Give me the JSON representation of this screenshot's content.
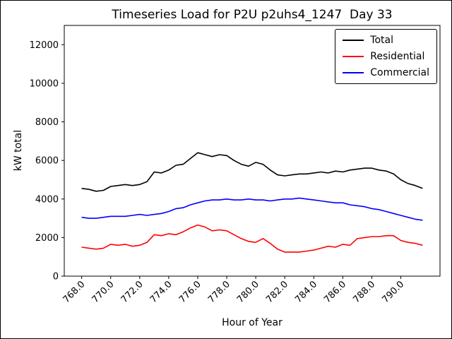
{
  "chart_data": {
    "type": "line",
    "title": "Timeseries Load for P2U p2uhs4_1247  Day 33",
    "xlabel": "Hour of Year",
    "ylabel": "kW total",
    "xlim": [
      766.8,
      792.7
    ],
    "ylim": [
      0,
      13000
    ],
    "grid": false,
    "legend_position": "upper right",
    "x_ticks": [
      768,
      770,
      772,
      774,
      776,
      778,
      780,
      782,
      784,
      786,
      788,
      790
    ],
    "x_tick_labels": [
      "768.0",
      "770.0",
      "772.0",
      "774.0",
      "776.0",
      "778.0",
      "780.0",
      "782.0",
      "784.0",
      "786.0",
      "788.0",
      "790.0"
    ],
    "y_ticks": [
      0,
      2000,
      4000,
      6000,
      8000,
      10000,
      12000
    ],
    "y_tick_labels": [
      "0",
      "2000",
      "4000",
      "6000",
      "8000",
      "10000",
      "12000"
    ],
    "x": [
      768.0,
      768.5,
      769.0,
      769.5,
      770.0,
      770.5,
      771.0,
      771.5,
      772.0,
      772.5,
      773.0,
      773.5,
      774.0,
      774.5,
      775.0,
      775.5,
      776.0,
      776.5,
      777.0,
      777.5,
      778.0,
      778.5,
      779.0,
      779.5,
      780.0,
      780.5,
      781.0,
      781.5,
      782.0,
      782.5,
      783.0,
      783.5,
      784.0,
      784.5,
      785.0,
      785.5,
      786.0,
      786.5,
      787.0,
      787.5,
      788.0,
      788.5,
      789.0,
      789.5,
      790.0,
      790.5,
      791.0,
      791.5
    ],
    "series": [
      {
        "name": "Total",
        "color": "#000000",
        "values": [
          4550,
          4500,
          4400,
          4450,
          4650,
          4700,
          4750,
          4700,
          4750,
          4900,
          5400,
          5350,
          5500,
          5750,
          5800,
          6100,
          6400,
          6300,
          6200,
          6300,
          6250,
          6000,
          5800,
          5700,
          5900,
          5800,
          5500,
          5250,
          5200,
          5250,
          5300,
          5300,
          5350,
          5400,
          5350,
          5450,
          5400,
          5500,
          5550,
          5600,
          5600,
          5500,
          5450,
          5300,
          5000,
          4800,
          4700,
          4550
        ]
      },
      {
        "name": "Residential",
        "color": "#ff0000",
        "values": [
          1500,
          1450,
          1400,
          1450,
          1650,
          1600,
          1650,
          1550,
          1600,
          1750,
          2150,
          2100,
          2200,
          2150,
          2300,
          2500,
          2650,
          2550,
          2350,
          2400,
          2350,
          2150,
          1950,
          1800,
          1750,
          1950,
          1700,
          1400,
          1250,
          1250,
          1250,
          1300,
          1350,
          1450,
          1550,
          1500,
          1650,
          1600,
          1950,
          2000,
          2050,
          2050,
          2100,
          2100,
          1850,
          1750,
          1700,
          1600
        ]
      },
      {
        "name": "Commercial",
        "color": "#0000ff",
        "values": [
          3050,
          3000,
          3000,
          3050,
          3100,
          3100,
          3100,
          3150,
          3200,
          3150,
          3200,
          3250,
          3350,
          3500,
          3550,
          3700,
          3800,
          3900,
          3950,
          3950,
          4000,
          3950,
          3950,
          4000,
          3950,
          3950,
          3900,
          3950,
          4000,
          4000,
          4050,
          4000,
          3950,
          3900,
          3850,
          3800,
          3800,
          3700,
          3650,
          3600,
          3500,
          3450,
          3350,
          3250,
          3150,
          3050,
          2950,
          2900
        ]
      }
    ]
  }
}
